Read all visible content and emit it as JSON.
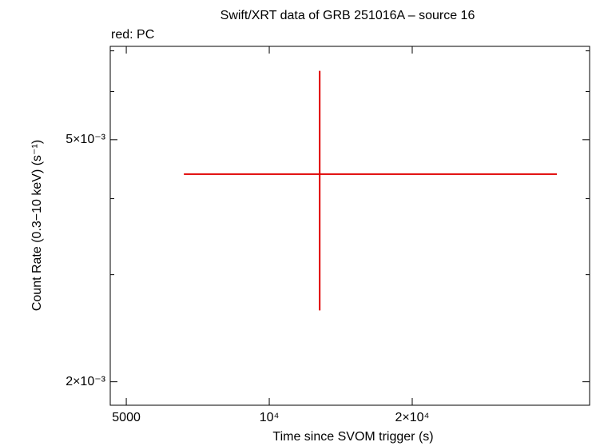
{
  "chart_data": {
    "type": "errorbar",
    "title": "Swift/XRT data of GRB 251016A – source 16",
    "annotation": "red: PC",
    "xlabel": "Time since SVOM trigger (s)",
    "ylabel": "Count Rate (0.3−10 keV) (s⁻¹)",
    "xscale": "log",
    "yscale": "log",
    "xlim": [
      4626,
      47260
    ],
    "ylim": [
      0.00183,
      0.00712
    ],
    "xticks": [
      5000,
      {
        "value": 10000,
        "label": "10⁴"
      },
      {
        "value": 20000,
        "label": "2×10⁴"
      }
    ],
    "yticks": [
      {
        "value": 0.002,
        "label": "2×10⁻³"
      },
      {
        "value": 0.005,
        "label": "5×10⁻³"
      }
    ],
    "yminorticks": [
      0.003,
      0.004,
      0.006,
      0.007
    ],
    "series": [
      {
        "name": "PC",
        "color": "#e00000",
        "x": [
          12770
        ],
        "xlow": [
          6610
        ],
        "xhigh": [
          40320
        ],
        "y": [
          0.00439
        ],
        "ylow": [
          0.00262
        ],
        "yhigh": [
          0.00649
        ]
      }
    ]
  }
}
